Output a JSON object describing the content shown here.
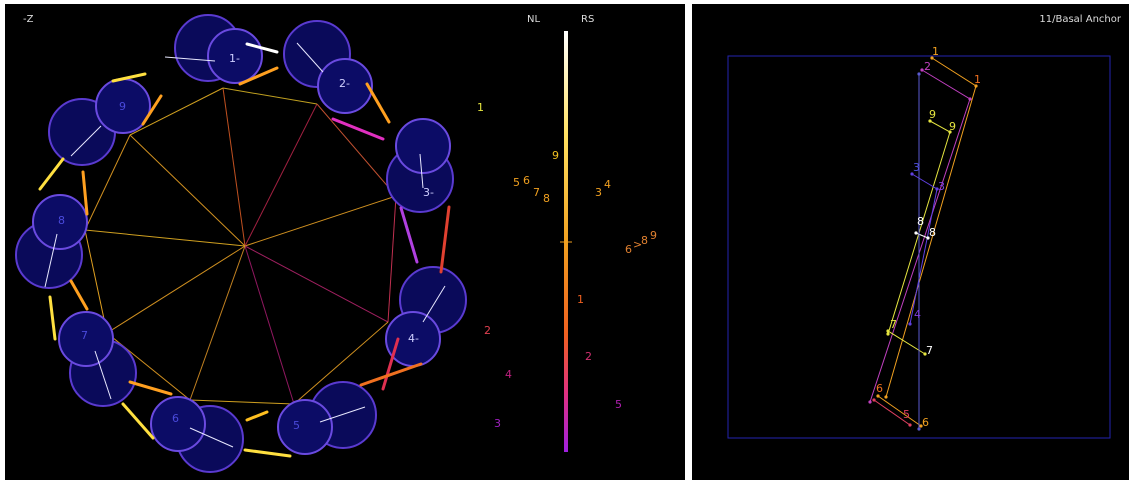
{
  "left": {
    "corner_label": "-Z",
    "nl_label": "NL",
    "rs_label": "RS",
    "circle_labels": [
      {
        "text": "1-",
        "dim": false
      },
      {
        "text": "2-",
        "dim": false
      },
      {
        "text": "3-",
        "dim": false
      },
      {
        "text": "4-",
        "dim": false
      },
      {
        "text": "5",
        "dim": true
      },
      {
        "text": "6",
        "dim": true
      },
      {
        "text": "7",
        "dim": true
      },
      {
        "text": "8",
        "dim": true
      },
      {
        "text": "9",
        "dim": true
      }
    ],
    "scale_numbers": [
      {
        "text": "1",
        "color": "#e6e640"
      },
      {
        "text": "9",
        "color": "#f0c020"
      },
      {
        "text": "5",
        "color": "#f0a020"
      },
      {
        "text": "6",
        "color": "#f0a020"
      },
      {
        "text": "7",
        "color": "#f0a020"
      },
      {
        "text": "8",
        "color": "#f0a020"
      },
      {
        "text": "3",
        "color": "#f0a020"
      },
      {
        "text": "4",
        "color": "#f0a020"
      },
      {
        "text": "6",
        "color": "#e08030"
      },
      {
        "text": ">",
        "color": "#e08030"
      },
      {
        "text": "8",
        "color": "#e08030"
      },
      {
        "text": "9",
        "color": "#e08030"
      },
      {
        "text": "1",
        "color": "#f06020"
      },
      {
        "text": "2",
        "color": "#e04050"
      },
      {
        "text": "2",
        "color": "#d03070"
      },
      {
        "text": "4",
        "color": "#c02080"
      },
      {
        "text": "5",
        "color": "#b020b0"
      },
      {
        "text": "3",
        "color": "#a020c0"
      }
    ]
  },
  "right": {
    "title": "11/Basal Anchor",
    "numbers": [
      {
        "text": "1",
        "color": "#f0a020"
      },
      {
        "text": "1",
        "color": "#f07020"
      },
      {
        "text": "2",
        "color": "#c040c0"
      },
      {
        "text": "9",
        "color": "#e6e640"
      },
      {
        "text": "9",
        "color": "#e6e640"
      },
      {
        "text": "3",
        "color": "#5050e0"
      },
      {
        "text": "3",
        "color": "#8040e0"
      },
      {
        "text": "8",
        "color": "#ffffff"
      },
      {
        "text": "8",
        "color": "#ffffff"
      },
      {
        "text": "4",
        "color": "#8040e0"
      },
      {
        "text": "7",
        "color": "#e6e640"
      },
      {
        "text": "7",
        "color": "#ffffff"
      },
      {
        "text": "6",
        "color": "#f07020"
      },
      {
        "text": "5",
        "color": "#e04060"
      },
      {
        "text": "6",
        "color": "#f0a020"
      }
    ]
  }
}
